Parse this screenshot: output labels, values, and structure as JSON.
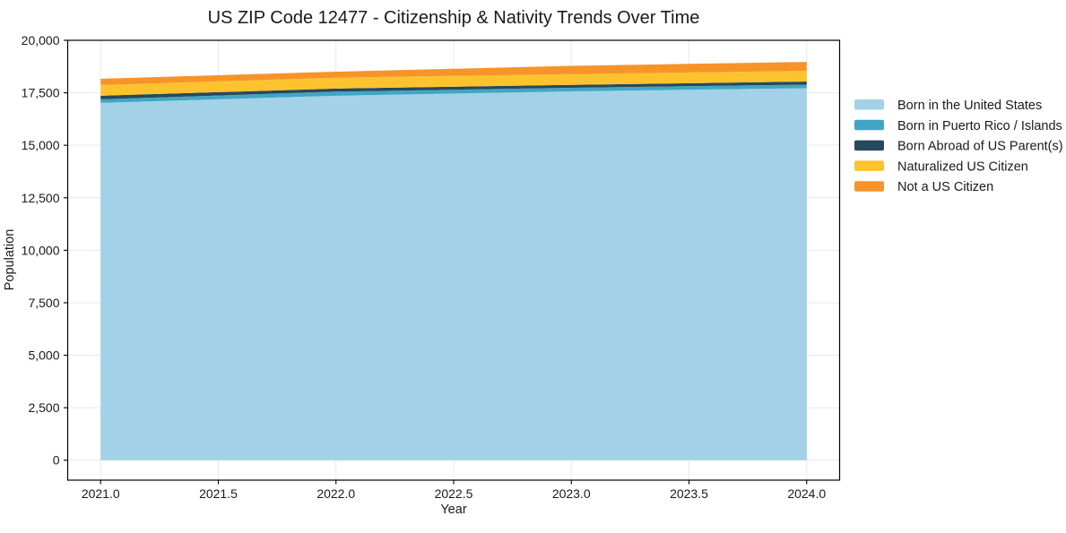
{
  "chart_data": {
    "type": "area",
    "stacked": true,
    "title": "US ZIP Code 12477 - Citizenship & Nativity Trends Over Time",
    "xlabel": "Year",
    "ylabel": "Population",
    "x": [
      2021,
      2022,
      2023,
      2024
    ],
    "series": [
      {
        "name": "Born in the United States",
        "color": "#a3d1e8",
        "values": [
          17020,
          17360,
          17570,
          17720
        ]
      },
      {
        "name": "Born in Puerto Rico / Islands",
        "color": "#41a6c4",
        "values": [
          170,
          195,
          170,
          170
        ]
      },
      {
        "name": "Born Abroad of US Parent(s)",
        "color": "#27495c",
        "values": [
          170,
          145,
          140,
          145
        ]
      },
      {
        "name": "Naturalized US Citizen",
        "color": "#fcc32e",
        "values": [
          510,
          520,
          510,
          510
        ]
      },
      {
        "name": "Not a US Citizen",
        "color": "#f79428",
        "values": [
          300,
          285,
          395,
          425
        ]
      }
    ],
    "stacked_totals": [
      18170,
      18505,
      18785,
      18970
    ],
    "xlim": [
      2020.86,
      2024.14
    ],
    "ylim": [
      -950,
      20000
    ],
    "x_ticks": [
      2021.0,
      2021.5,
      2022.0,
      2022.5,
      2023.0,
      2023.5,
      2024.0
    ],
    "x_tick_labels": [
      "2021.0",
      "2021.5",
      "2022.0",
      "2022.5",
      "2023.0",
      "2023.5",
      "2024.0"
    ],
    "y_ticks": [
      0,
      2500,
      5000,
      7500,
      10000,
      12500,
      15000,
      17500,
      20000
    ],
    "y_tick_labels": [
      "0",
      "2,500",
      "5,000",
      "7,500",
      "10,000",
      "12,500",
      "15,000",
      "17,500",
      "20,000"
    ],
    "grid": true,
    "grid_color": "#e9e9e9",
    "spine_color": "#000000",
    "text_color": "#1a1a1a",
    "legend_position": "right-outside"
  }
}
